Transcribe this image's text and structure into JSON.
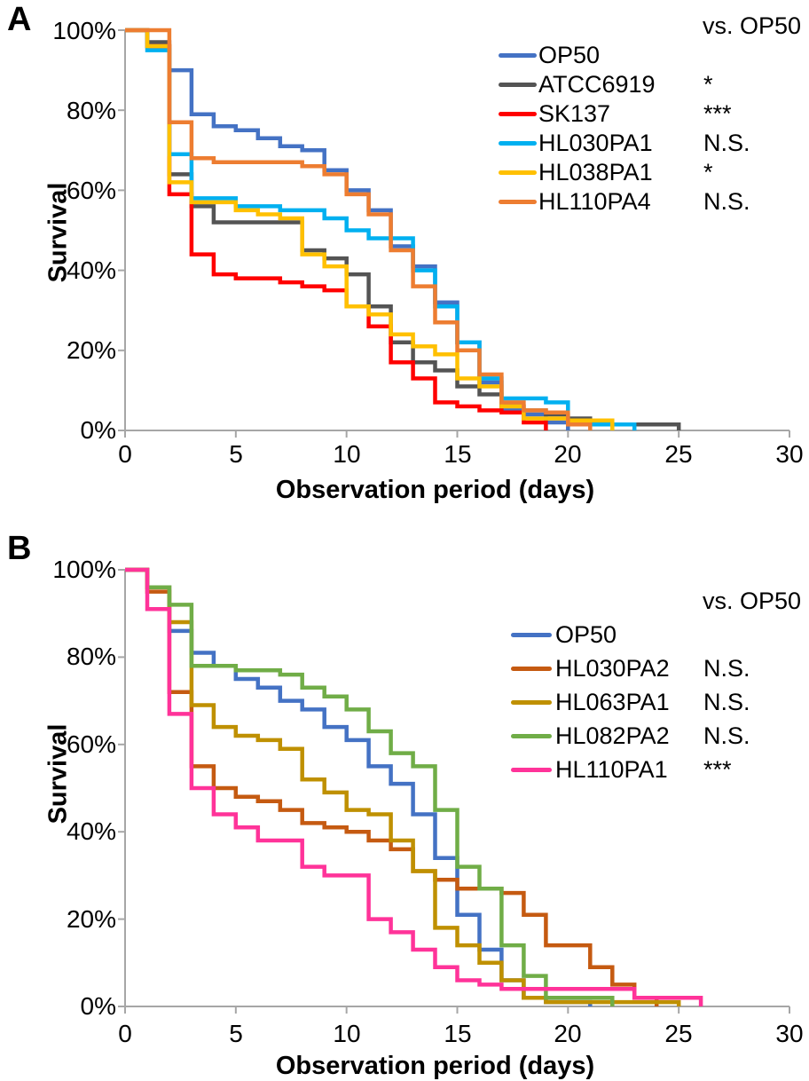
{
  "chart_data": [
    {
      "type": "line",
      "step": true,
      "panel_label": "A",
      "xlabel": "Observation period (days)",
      "ylabel": "Survival",
      "xlim": [
        0,
        30
      ],
      "ylim": [
        0,
        100
      ],
      "grid": false,
      "legend_position": "upper right inside",
      "legend_header": "vs. OP50",
      "x_ticks": [
        0,
        5,
        10,
        15,
        20,
        25,
        30
      ],
      "x_tick_labels": [
        "0",
        "5",
        "10",
        "15",
        "20",
        "25",
        "30"
      ],
      "y_ticks": [
        0,
        20,
        40,
        60,
        80,
        100
      ],
      "y_tick_labels_top_down": [
        "100%",
        "80%",
        "60%",
        "40%",
        "20%",
        "0%"
      ],
      "series": [
        {
          "name": "OP50",
          "significance": "",
          "color": "#4472C4",
          "days": [
            0,
            1,
            2,
            3,
            4,
            5,
            6,
            7,
            8,
            9,
            10,
            11,
            12,
            13,
            14,
            15,
            16,
            17,
            18,
            19,
            20
          ],
          "survival_pct": [
            100,
            96,
            90,
            79,
            76,
            75,
            73,
            71,
            70,
            65,
            60,
            55,
            46,
            41,
            32,
            22,
            12,
            5,
            4,
            2,
            0
          ]
        },
        {
          "name": "ATCC6919",
          "significance": "*",
          "color": "#545454",
          "days": [
            0,
            1,
            2,
            3,
            4,
            5,
            6,
            7,
            8,
            9,
            10,
            11,
            12,
            13,
            14,
            15,
            16,
            17,
            18,
            19,
            20,
            21,
            25
          ],
          "survival_pct": [
            100,
            97,
            64,
            56,
            52,
            52,
            52,
            52,
            45,
            43,
            39,
            31,
            22,
            17,
            15,
            11,
            9,
            6,
            5,
            4,
            3,
            1.5,
            0
          ]
        },
        {
          "name": "SK137",
          "significance": "***",
          "color": "#FF0000",
          "days": [
            0,
            1,
            2,
            3,
            4,
            5,
            6,
            7,
            8,
            9,
            10,
            11,
            12,
            13,
            14,
            15,
            16,
            17,
            18,
            19
          ],
          "survival_pct": [
            100,
            96,
            59,
            44,
            39,
            38,
            38,
            37,
            36,
            35,
            31,
            26,
            17,
            13,
            7,
            6,
            5,
            4.5,
            2,
            0
          ]
        },
        {
          "name": "HL030PA1",
          "significance": "N.S.",
          "color": "#00B0F0",
          "days": [
            0,
            1,
            2,
            3,
            4,
            5,
            6,
            7,
            8,
            9,
            10,
            11,
            12,
            13,
            14,
            15,
            16,
            17,
            18,
            19,
            20,
            21,
            23
          ],
          "survival_pct": [
            100,
            95,
            69,
            58,
            58,
            56,
            56,
            55,
            55,
            53,
            50,
            48,
            48,
            40,
            31,
            22,
            13,
            8,
            8,
            7,
            2,
            1.5,
            0
          ]
        },
        {
          "name": "HL038PA1",
          "significance": "*",
          "color": "#FFC000",
          "days": [
            0,
            1,
            2,
            3,
            4,
            5,
            6,
            7,
            8,
            9,
            10,
            11,
            12,
            13,
            14,
            15,
            16,
            17,
            18,
            19,
            20,
            22
          ],
          "survival_pct": [
            100,
            96,
            62,
            57,
            57,
            55,
            54,
            53,
            44,
            41,
            31,
            29,
            24,
            21,
            19,
            13,
            11,
            6,
            3,
            3,
            2.5,
            0
          ]
        },
        {
          "name": "HL110PA4",
          "significance": "N.S.",
          "color": "#ED7D31",
          "days": [
            0,
            1,
            2,
            3,
            4,
            5,
            6,
            7,
            8,
            9,
            10,
            11,
            12,
            13,
            14,
            15,
            16,
            17,
            18,
            19,
            20,
            21
          ],
          "survival_pct": [
            100,
            100,
            77,
            68,
            67,
            67,
            67,
            67,
            66,
            64,
            59,
            54,
            45,
            36,
            27,
            20,
            14,
            7,
            5,
            4.5,
            1.5,
            0
          ]
        }
      ]
    },
    {
      "type": "line",
      "step": true,
      "panel_label": "B",
      "xlabel": "Observation period (days)",
      "ylabel": "Survival",
      "xlim": [
        0,
        30
      ],
      "ylim": [
        0,
        100
      ],
      "grid": false,
      "legend_position": "upper right inside",
      "legend_header": "vs. OP50",
      "x_ticks": [
        0,
        5,
        10,
        15,
        20,
        25,
        30
      ],
      "x_tick_labels": [
        "0",
        "5",
        "10",
        "15",
        "20",
        "25",
        "30"
      ],
      "y_ticks": [
        0,
        20,
        40,
        60,
        80,
        100
      ],
      "y_tick_labels_top_down": [
        "100%",
        "80%",
        "60%",
        "40%",
        "20%",
        "0%"
      ],
      "series": [
        {
          "name": "OP50",
          "significance": "",
          "color": "#4472C4",
          "days": [
            0,
            1,
            2,
            3,
            4,
            5,
            6,
            7,
            8,
            9,
            10,
            11,
            12,
            13,
            14,
            15,
            16,
            17,
            18,
            19,
            20,
            21
          ],
          "survival_pct": [
            100,
            96,
            86,
            81,
            78,
            75,
            73,
            70,
            68,
            64,
            61,
            55,
            51,
            44,
            34,
            21,
            13,
            6,
            2,
            1,
            1,
            0
          ]
        },
        {
          "name": "HL030PA2",
          "significance": "N.S.",
          "color": "#C55A11",
          "days": [
            0,
            1,
            2,
            3,
            4,
            5,
            6,
            7,
            8,
            9,
            10,
            11,
            12,
            13,
            14,
            15,
            16,
            17,
            18,
            19,
            20,
            21,
            22,
            23,
            24
          ],
          "survival_pct": [
            100,
            95,
            72,
            55,
            50,
            48,
            47,
            45,
            42,
            41,
            40,
            38,
            36,
            31,
            29,
            27,
            27,
            26,
            21,
            14,
            14,
            9,
            5,
            2,
            0
          ]
        },
        {
          "name": "HL063PA1",
          "significance": "N.S.",
          "color": "#BF9000",
          "days": [
            0,
            1,
            2,
            3,
            4,
            5,
            6,
            7,
            8,
            9,
            10,
            11,
            12,
            13,
            14,
            15,
            16,
            17,
            18,
            19,
            20,
            21,
            22,
            23,
            24,
            25
          ],
          "survival_pct": [
            100,
            96,
            88,
            69,
            64,
            62,
            61,
            59,
            52,
            49,
            45,
            44,
            38,
            31,
            18,
            14,
            10,
            6,
            2,
            1,
            1,
            1,
            1,
            1,
            1,
            0
          ]
        },
        {
          "name": "HL082PA2",
          "significance": "N.S.",
          "color": "#70AD47",
          "days": [
            0,
            1,
            2,
            3,
            4,
            5,
            6,
            7,
            8,
            9,
            10,
            11,
            12,
            13,
            14,
            15,
            16,
            17,
            18,
            19,
            20,
            21,
            22
          ],
          "survival_pct": [
            100,
            96,
            92,
            78,
            78,
            77,
            77,
            76,
            73,
            71,
            68,
            63,
            58,
            55,
            45,
            32,
            27,
            14,
            7,
            2,
            2,
            2,
            0
          ]
        },
        {
          "name": "HL110PA1",
          "significance": "***",
          "color": "#FF3399",
          "days": [
            0,
            1,
            2,
            3,
            4,
            5,
            6,
            7,
            8,
            9,
            10,
            11,
            12,
            13,
            14,
            15,
            16,
            17,
            18,
            19,
            20,
            21,
            22,
            23,
            24,
            25,
            26
          ],
          "survival_pct": [
            100,
            91,
            67,
            50,
            44,
            41,
            38,
            38,
            32,
            30,
            30,
            20,
            17,
            13,
            9,
            6,
            5,
            4,
            4,
            4,
            4,
            4,
            4,
            2,
            2,
            2,
            0
          ]
        }
      ]
    }
  ]
}
